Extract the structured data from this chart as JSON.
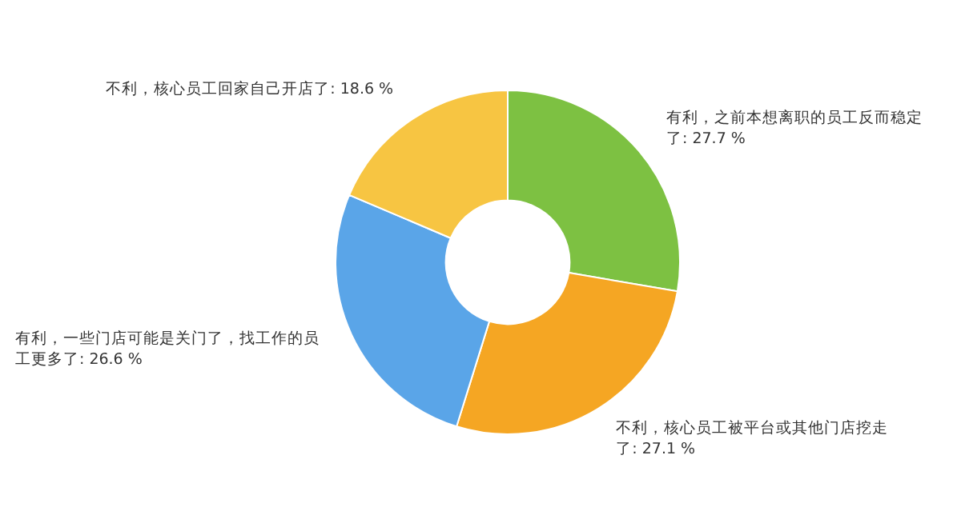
{
  "chart_data": {
    "type": "donut",
    "categories": [
      "有利，之前本想离职的员工反而稳定了",
      "不利，核心员工被平台或其他门店挖走了",
      "有利，一些门店可能是关门了，找工作的员工更多了",
      "不利，核心员工回家自己开店了"
    ],
    "values": [
      27.7,
      27.1,
      26.6,
      18.6
    ],
    "colors": [
      "#7dc142",
      "#f5a623",
      "#5aa5e8",
      "#f7c542"
    ],
    "value_labels": [
      "27.7 %",
      "27.1 %",
      "26.6 %",
      "18.6 %"
    ],
    "legend": false
  }
}
